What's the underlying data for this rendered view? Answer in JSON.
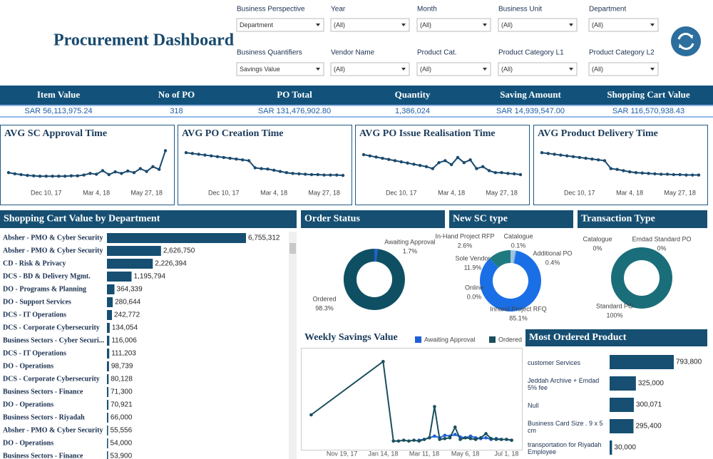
{
  "title": "Procurement Dashboard",
  "filters": [
    {
      "label": "Business Perspective",
      "value": "Department"
    },
    {
      "label": "Year",
      "value": "(All)"
    },
    {
      "label": "Month",
      "value": "(All)"
    },
    {
      "label": "Business Unit",
      "value": "(All)"
    },
    {
      "label": "Department",
      "value": "(All)"
    },
    {
      "label": "Business Quantifiers",
      "value": "Savings Value"
    },
    {
      "label": "Vendor Name",
      "value": "(All)"
    },
    {
      "label": "Product Cat.",
      "value": "(All)"
    },
    {
      "label": "Product Category L1",
      "value": "(All)"
    },
    {
      "label": "Product Category L2",
      "value": "(All)"
    }
  ],
  "kpis": [
    {
      "label": "Item Value",
      "value": "SAR 56,113,975.24"
    },
    {
      "label": "No of PO",
      "value": "318"
    },
    {
      "label": "PO Total",
      "value": "SAR 131,476,902.80"
    },
    {
      "label": "Quantity",
      "value": "1,386,024"
    },
    {
      "label": "Saving Amount",
      "value": "SAR 14,939,547.00"
    },
    {
      "label": "Shopping Cart Value",
      "value": "SAR 116,570,938.43"
    }
  ],
  "chart_data": [
    {
      "type": "line",
      "title": "AVG SC Approval Time",
      "color": "#1a4a6e",
      "ylim": [
        0,
        100
      ],
      "categories": [
        null,
        null,
        null,
        null,
        null,
        null,
        "Dec 10, 17",
        null,
        null,
        null,
        null,
        null,
        null,
        null,
        "Mar 4, 18",
        null,
        null,
        null,
        null,
        null,
        null,
        null,
        "May 27, 18",
        null,
        null,
        null
      ],
      "values": [
        30,
        27,
        25,
        23,
        22,
        21,
        21,
        21,
        21,
        21,
        22,
        22,
        24,
        28,
        26,
        35,
        25,
        32,
        28,
        34,
        30,
        40,
        33,
        45,
        38,
        85
      ]
    },
    {
      "type": "line",
      "title": "AVG PO Creation Time",
      "color": "#1a4a6e",
      "ylim": [
        0,
        100
      ],
      "categories": [
        null,
        null,
        null,
        null,
        null,
        null,
        "Dec 10, 17",
        null,
        null,
        null,
        null,
        null,
        null,
        null,
        "Mar 4, 18",
        null,
        null,
        null,
        null,
        null,
        null,
        null,
        "May 27, 18",
        null,
        null,
        null
      ],
      "values": [
        80,
        78,
        76,
        74,
        72,
        70,
        68,
        66,
        64,
        62,
        60,
        42,
        40,
        39,
        36,
        33,
        30,
        28,
        27,
        26,
        25,
        25,
        24,
        24,
        24,
        23
      ]
    },
    {
      "type": "line",
      "title": "AVG PO Issue Realisation Time",
      "color": "#1a4a6e",
      "ylim": [
        0,
        100
      ],
      "categories": [
        null,
        null,
        null,
        null,
        null,
        null,
        "Dec 10, 17",
        null,
        null,
        null,
        null,
        null,
        null,
        null,
        "Mar 4, 18",
        null,
        null,
        null,
        null,
        null,
        null,
        null,
        "May 27, 18",
        null,
        null,
        null
      ],
      "values": [
        75,
        72,
        69,
        66,
        63,
        60,
        57,
        54,
        51,
        48,
        45,
        40,
        55,
        60,
        50,
        68,
        55,
        62,
        40,
        45,
        35,
        30,
        30,
        28,
        27,
        25
      ]
    },
    {
      "type": "line",
      "title": "AVG Product Delivery Time",
      "color": "#1a4a6e",
      "ylim": [
        0,
        100
      ],
      "categories": [
        null,
        null,
        null,
        null,
        null,
        null,
        "Dec 10, 17",
        null,
        null,
        null,
        null,
        null,
        null,
        null,
        "Mar 4, 18",
        null,
        null,
        null,
        null,
        null,
        null,
        null,
        "May 27, 18",
        null,
        null,
        null
      ],
      "values": [
        80,
        78,
        76,
        74,
        72,
        70,
        68,
        66,
        64,
        62,
        60,
        40,
        38,
        35,
        32,
        30,
        29,
        28,
        27,
        26,
        26,
        25,
        25,
        24,
        24,
        24
      ]
    },
    {
      "type": "hbar",
      "title": "Shopping Cart Value by Department",
      "color": "#164f72",
      "categories": [
        "Absher - PMO & Cyber Security",
        "Absher - PMO & Cyber Security",
        "CD - Risk & Privacy",
        "DCS - BD & Delivery Mgmt.",
        "DO - Programs & Planning",
        "DO - Support Services",
        "DCS - IT Operations",
        "DCS - Corporate Cybersecurity",
        "Business Sectors - Cyber Securi...",
        "DCS - IT Operations",
        "DO - Operations",
        "DCS - Corporate Cybersecurity",
        "Business Sectors - Finance",
        "DO - Operations",
        "Business Sectors - Riyadah",
        "Absher - PMO & Cyber Security",
        "DO - Operations",
        "Business Sectors - Finance"
      ],
      "values": [
        6755312,
        2626750,
        2226394,
        1195794,
        364339,
        280644,
        242772,
        134054,
        116006,
        111203,
        98739,
        80128,
        71300,
        70921,
        66000,
        55556,
        54000,
        53900
      ],
      "value_labels": [
        "6,755,312",
        "2,626,750",
        "2,226,394",
        "1,195,794",
        "364,339",
        "280,644",
        "242,772",
        "134,054",
        "116,006",
        "111,203",
        "98,739",
        "80,128",
        "71,300",
        "70,921",
        "66,000",
        "55,556",
        "54,000",
        "53,900"
      ]
    },
    {
      "type": "donut",
      "title": "Order Status",
      "categories": [
        "Awaiting Approval",
        "Ordered"
      ],
      "values": [
        1.7,
        98.3
      ],
      "value_labels": [
        "1.7%",
        "98.3%"
      ],
      "colors": [
        "#1f5fd6",
        "#0f4f63"
      ]
    },
    {
      "type": "donut",
      "title": "New SC type",
      "categories": [
        "In-Hand Project RFP",
        "Catalogue",
        "Additional PO",
        "Inhand Project RFQ",
        "Online",
        "Sole Vendor"
      ],
      "values": [
        2.6,
        0.1,
        0.4,
        85.1,
        0.0,
        11.9
      ],
      "value_labels": [
        "2.6%",
        "0.1%",
        "0.4%",
        "85.1%",
        "0.0%",
        "11.9%"
      ],
      "colors": [
        "#9ec3e6",
        "#0f4f63",
        "#5aa0d8",
        "#1a6fe6",
        "#cfd8e0",
        "#1f7a80"
      ]
    },
    {
      "type": "donut",
      "title": "Transaction Type",
      "categories": [
        "Catalogue",
        "Emdad Standard PO",
        "Standard PO"
      ],
      "values": [
        0,
        0,
        100
      ],
      "value_labels": [
        "0%",
        "0%",
        "100%"
      ],
      "colors": [
        "#8fb8d8",
        "#2b8fa0",
        "#1a6e7a"
      ]
    },
    {
      "type": "dateline",
      "title": "Weekly Savings Value",
      "ylim": [
        0,
        120
      ],
      "xlim": [
        "2017-09-24",
        "2018-07-22"
      ],
      "x": [
        "2017-10-08",
        "2018-01-14",
        "2018-01-28",
        "2018-02-04",
        "2018-02-11",
        "2018-02-18",
        "2018-02-25",
        "2018-03-04",
        "2018-03-11",
        "2018-03-18",
        "2018-03-25",
        "2018-04-01",
        "2018-04-08",
        "2018-04-15",
        "2018-04-22",
        "2018-04-29",
        "2018-05-06",
        "2018-05-13",
        "2018-05-20",
        "2018-05-27",
        "2018-06-03",
        "2018-06-10",
        "2018-06-17",
        "2018-06-24",
        "2018-07-01",
        "2018-07-08"
      ],
      "xticks": [
        {
          "value": "2017-11-19",
          "label": "Nov 19, 17"
        },
        {
          "value": "2018-01-14",
          "label": "Jan 14, 18"
        },
        {
          "value": "2018-03-11",
          "label": "Mar 11, 18"
        },
        {
          "value": "2018-05-06",
          "label": "May 6, 18"
        },
        {
          "value": "2018-07-01",
          "label": "Jul 1, 18"
        }
      ],
      "series": [
        {
          "name": "Awaiting Approval",
          "color": "#1f5fd6",
          "values": [
            null,
            null,
            null,
            null,
            null,
            null,
            null,
            9,
            10,
            12,
            14,
            12,
            15,
            14,
            16,
            13,
            12,
            14,
            12,
            11,
            12,
            10,
            11,
            10,
            10,
            9
          ]
        },
        {
          "name": "Ordered",
          "color": "#1a4f5e",
          "values": [
            40,
            105,
            8,
            8,
            9,
            8,
            9,
            8,
            10,
            12,
            50,
            10,
            11,
            12,
            25,
            10,
            12,
            11,
            10,
            12,
            17,
            11,
            10,
            10,
            10,
            9
          ]
        }
      ]
    },
    {
      "type": "hbar",
      "title": "Most Ordered Product",
      "color": "#164f72",
      "categories": [
        "customer Services",
        "Jeddah Archive + Emdad 5% fee",
        "Null",
        "Business Card Size . 9 x 5 cm",
        "transportation for Riyadah Employee"
      ],
      "values": [
        793800,
        325000,
        300071,
        295400,
        30000
      ],
      "value_labels": [
        "793,800",
        "325,000",
        "300,071",
        "295,400",
        "30,000"
      ]
    }
  ]
}
